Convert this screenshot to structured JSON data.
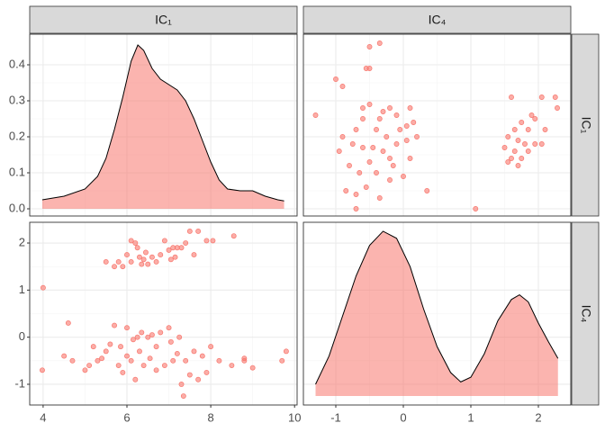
{
  "columns": [
    "IC₁",
    "IC₄"
  ],
  "rows": [
    "IC₁",
    "IC₄"
  ],
  "chart_data": [
    {
      "type": "density",
      "color": "#f8766d",
      "grid": true,
      "x": [
        3.98,
        4.5,
        5.0,
        5.3,
        5.5,
        5.7,
        5.9,
        6.1,
        6.26,
        6.4,
        6.6,
        6.8,
        7.0,
        7.2,
        7.4,
        7.6,
        7.8,
        8.0,
        8.2,
        8.4,
        8.7,
        9.0,
        9.3,
        9.6,
        9.75
      ],
      "y": [
        0.025,
        0.035,
        0.055,
        0.09,
        0.14,
        0.22,
        0.31,
        0.41,
        0.455,
        0.44,
        0.39,
        0.36,
        0.345,
        0.33,
        0.3,
        0.25,
        0.19,
        0.13,
        0.08,
        0.055,
        0.05,
        0.05,
        0.035,
        0.025,
        0.022
      ],
      "baseline": 0,
      "xlim": [
        3.68,
        10.06
      ],
      "xticks": [
        4,
        6,
        8,
        10
      ],
      "ylim": [
        -0.02,
        0.485
      ],
      "yticks": [
        {
          "value": 0,
          "label": "0.0"
        },
        0.1,
        0.2,
        0.3,
        0.4
      ]
    },
    {
      "type": "scatter",
      "color": "#f8766d",
      "grid": true,
      "x": [
        -1.3,
        -1.0,
        -0.9,
        -0.5,
        -0.35,
        -0.5,
        -0.55,
        -0.5,
        -0.6,
        -0.3,
        -0.2,
        -0.1,
        0.1,
        0.15,
        0.05,
        -0.4,
        -0.7,
        -0.9,
        -0.75,
        -0.6,
        -0.45,
        -0.3,
        -0.1,
        0.05,
        0.1,
        -0.2,
        -0.5,
        -0.8,
        -0.65,
        -0.4,
        -0.2,
        -0.55,
        -0.85,
        -0.7,
        -0.35,
        -0.7,
        0.35,
        0.0,
        -0.25,
        -0.05,
        -0.35,
        -0.6,
        -0.15,
        0.2,
        -0.95,
        1.07,
        1.6,
        2.05,
        2.25,
        2.28,
        1.9,
        1.95,
        1.75,
        1.65,
        1.85,
        2.1,
        1.55,
        1.7,
        1.8,
        1.95,
        2.05,
        1.5,
        1.65,
        1.85,
        1.6,
        1.75,
        1.7,
        1.55
      ],
      "y": [
        0.26,
        0.36,
        0.34,
        0.45,
        0.46,
        0.39,
        0.39,
        0.29,
        0.28,
        0.27,
        0.28,
        0.26,
        0.28,
        0.24,
        0.23,
        0.22,
        0.22,
        0.2,
        0.18,
        0.17,
        0.17,
        0.16,
        0.18,
        0.19,
        0.14,
        0.14,
        0.13,
        0.12,
        0.1,
        0.1,
        0.08,
        0.06,
        0.05,
        0.04,
        0.03,
        0.0,
        0.05,
        0.09,
        0.2,
        0.22,
        0.25,
        0.25,
        0.12,
        0.2,
        0.16,
        0.0,
        0.31,
        0.31,
        0.31,
        0.28,
        0.26,
        0.25,
        0.24,
        0.22,
        0.22,
        0.22,
        0.2,
        0.19,
        0.18,
        0.18,
        0.18,
        0.17,
        0.16,
        0.16,
        0.14,
        0.14,
        0.12,
        0.13
      ],
      "xlim": [
        -1.48,
        2.48
      ],
      "xticks": [
        -1,
        0,
        1,
        2
      ],
      "ylim": [
        -0.02,
        0.485
      ],
      "yticks": [
        {
          "value": 0,
          "label": "0.0"
        },
        0.1,
        0.2,
        0.3,
        0.4
      ]
    },
    {
      "type": "scatter",
      "color": "#f8766d",
      "grid": true,
      "x": [
        4.0,
        3.98,
        5.5,
        5.7,
        5.8,
        5.9,
        6.0,
        6.1,
        6.2,
        6.25,
        6.3,
        6.4,
        6.45,
        6.5,
        6.6,
        6.7,
        6.8,
        6.9,
        7.0,
        7.05,
        7.1,
        7.2,
        7.3,
        7.4,
        7.5,
        7.6,
        7.9,
        8.05,
        8.55,
        6.1,
        6.35,
        7.7,
        7.15,
        4.6,
        4.5,
        4.7,
        5.0,
        5.1,
        5.3,
        5.4,
        5.5,
        5.6,
        5.7,
        5.8,
        5.85,
        5.9,
        6.0,
        6.0,
        6.1,
        6.2,
        6.25,
        6.3,
        6.35,
        6.4,
        6.5,
        6.55,
        6.6,
        6.7,
        6.8,
        6.9,
        7.0,
        7.05,
        7.1,
        7.2,
        7.25,
        7.3,
        7.35,
        7.4,
        7.5,
        7.6,
        7.7,
        7.8,
        8.0,
        8.2,
        8.5,
        8.8,
        8.8,
        9.0,
        9.7,
        9.8,
        5.2,
        6.15,
        6.7,
        7.9
      ],
      "y": [
        1.05,
        -0.7,
        1.6,
        1.5,
        1.6,
        1.5,
        1.75,
        1.6,
        2.0,
        1.9,
        1.7,
        1.65,
        1.8,
        1.55,
        1.7,
        1.6,
        1.75,
        2.05,
        1.85,
        1.65,
        1.9,
        1.9,
        1.9,
        2.0,
        2.25,
        1.75,
        2.05,
        2.05,
        2.15,
        2.05,
        1.55,
        2.25,
        1.7,
        0.3,
        -0.4,
        -0.5,
        -0.7,
        -0.6,
        -0.5,
        -0.45,
        -0.3,
        -0.15,
        0.25,
        -0.6,
        -0.2,
        -0.75,
        0.2,
        -0.4,
        -0.5,
        -0.9,
        0.0,
        -0.3,
        0.1,
        -0.6,
        0.0,
        -0.45,
        0.05,
        -0.2,
        0.1,
        -0.6,
        0.2,
        -0.1,
        -0.5,
        -0.35,
        0.0,
        -1.0,
        -1.25,
        -0.5,
        -0.8,
        -0.3,
        -0.9,
        -0.4,
        -0.2,
        -0.5,
        -0.6,
        -0.5,
        -0.45,
        -0.65,
        -0.5,
        -0.3,
        -0.2,
        -0.05,
        -0.7,
        -0.75
      ],
      "xlim": [
        3.68,
        10.06
      ],
      "xticks": [
        4,
        6,
        8,
        10
      ],
      "ylim": [
        -1.44,
        2.44
      ],
      "yticks": [
        -1,
        0,
        1,
        2
      ]
    },
    {
      "type": "density",
      "color": "#f8766d",
      "grid": true,
      "x": [
        -1.3,
        -1.1,
        -0.9,
        -0.7,
        -0.5,
        -0.3,
        -0.1,
        0.1,
        0.3,
        0.5,
        0.7,
        0.85,
        1.0,
        1.2,
        1.4,
        1.6,
        1.72,
        1.85,
        2.0,
        2.15,
        2.29
      ],
      "y": [
        -1.0,
        -0.4,
        0.45,
        1.3,
        1.95,
        2.25,
        2.1,
        1.5,
        0.6,
        -0.2,
        -0.75,
        -0.95,
        -0.85,
        -0.35,
        0.35,
        0.8,
        0.9,
        0.75,
        0.3,
        -0.1,
        -0.45
      ],
      "baseline": -1.25,
      "xlim": [
        -1.48,
        2.48
      ],
      "xticks": [
        -1,
        0,
        1,
        2
      ],
      "ylim": [
        -1.44,
        2.44
      ],
      "yticks": [
        -1,
        0,
        1,
        2
      ]
    }
  ]
}
